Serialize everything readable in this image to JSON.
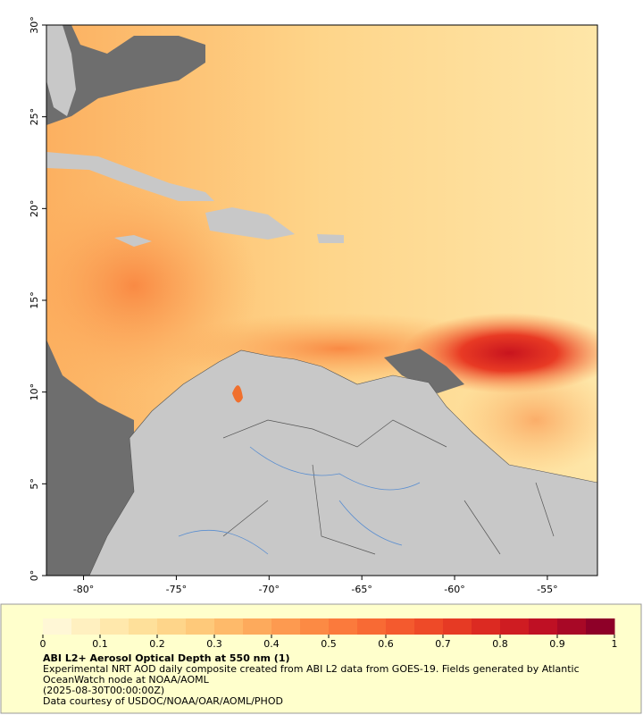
{
  "map": {
    "xlim": [
      -82,
      -52.3
    ],
    "ylim": [
      0,
      30
    ],
    "xticks": [
      {
        "value": -80,
        "label": "-80°"
      },
      {
        "value": -75,
        "label": "-75°"
      },
      {
        "value": -70,
        "label": "-70°"
      },
      {
        "value": -65,
        "label": "-65°"
      },
      {
        "value": -60,
        "label": "-60°"
      },
      {
        "value": -55,
        "label": "-55°"
      }
    ],
    "yticks": [
      {
        "value": 0,
        "label": "0°"
      },
      {
        "value": 5,
        "label": "5°"
      },
      {
        "value": 10,
        "label": "10°"
      },
      {
        "value": 15,
        "label": "15°"
      },
      {
        "value": 20,
        "label": "20°"
      },
      {
        "value": 25,
        "label": "25°"
      },
      {
        "value": 30,
        "label": "30°"
      }
    ]
  },
  "colorbar": {
    "lim": [
      0,
      1
    ],
    "ticks": [
      0,
      0.1,
      0.2,
      0.3,
      0.4,
      0.5,
      0.6,
      0.7,
      0.8,
      0.9,
      1
    ],
    "colors": [
      "#fff7d6",
      "#fff0c0",
      "#ffe8ac",
      "#fee09a",
      "#fed58a",
      "#fec97a",
      "#feba6a",
      "#fdaa5c",
      "#fd9a50",
      "#fc8a44",
      "#fb7a3c",
      "#f86a34",
      "#f45a2e",
      "#ee4a28",
      "#e63a24",
      "#dc2a22",
      "#cf1c22",
      "#bf1024",
      "#a80826",
      "#8e0028"
    ]
  },
  "legend": {
    "title": "ABI L2+ Aerosol Optical Depth at 550 nm (1)",
    "description": "Experimental NRT AOD daily composite created from ABI L2 data from GOES-19. Fields generated by Atlantic OceanWatch node at NOAA/AOML",
    "time": "(2025-08-30T00:00:00Z)",
    "credit": "Data courtesy of USDOC/NOAA/OAR/AOML/PHOD"
  }
}
